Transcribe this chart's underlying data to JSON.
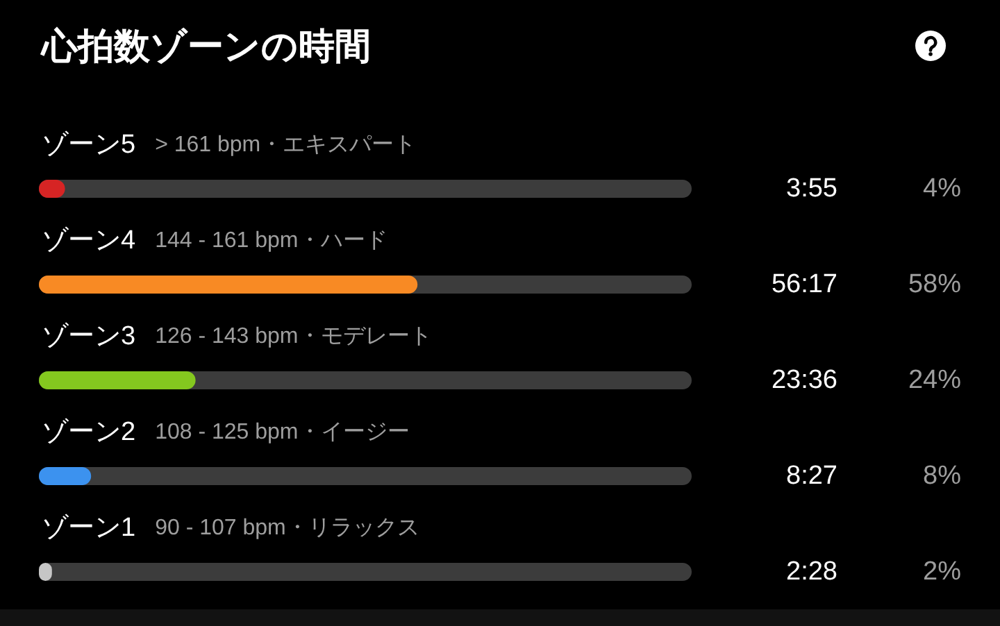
{
  "chart_data": {
    "type": "bar",
    "orientation": "horizontal",
    "title": "心拍数ゾーンの時間",
    "categories": [
      "ゾーン5 > 161 bpm・エキスパート",
      "ゾーン4 144 - 161 bpm・ハード",
      "ゾーン3 126 - 143 bpm・モデレート",
      "ゾーン2 108 - 125 bpm・イージー",
      "ゾーン1 90 - 107 bpm・リラックス"
    ],
    "values": [
      4,
      58,
      24,
      8,
      2
    ],
    "colors": [
      "#d62424",
      "#f88a24",
      "#84c81f",
      "#3c92ef",
      "#c6c6c6"
    ],
    "value_labels": [
      "4%",
      "58%",
      "24%",
      "8%",
      "2%"
    ],
    "annotations": [
      "3:55",
      "56:17",
      "23:36",
      "8:27",
      "2:28"
    ],
    "xlim": [
      0,
      100
    ],
    "tick_labels": "y"
  }
}
